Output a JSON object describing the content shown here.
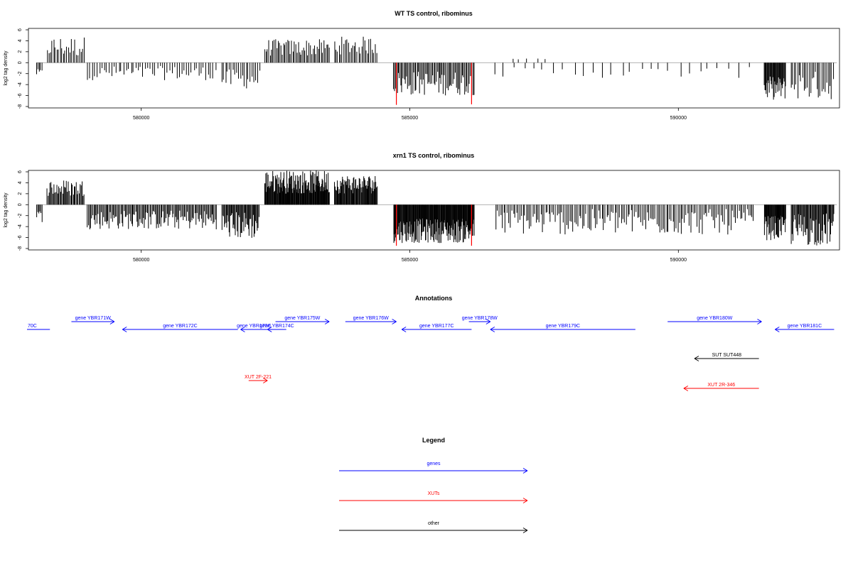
{
  "chart_data": [
    {
      "type": "bar",
      "title": "WT TS control, ribominus",
      "xlabel": "",
      "ylabel": "log2 tag density",
      "xlim": [
        577900,
        593000
      ],
      "ylim": [
        -8,
        6
      ],
      "yticks": [
        "-8",
        "-6",
        "-4",
        "-2",
        "0",
        "2",
        "4",
        "6"
      ],
      "xticks": [
        "580000",
        "585000",
        "590000"
      ],
      "highlight_color": "#ff0000",
      "highlighted_bars": [
        {
          "x": 584750,
          "value": -7.7
        },
        {
          "x": 586150,
          "value": -7.6
        }
      ],
      "segments": [
        {
          "x0": 578050,
          "x1": 578150,
          "step": 25,
          "min": -2.5,
          "max": -1.2
        },
        {
          "x0": 578250,
          "x1": 578950,
          "step": 30,
          "min": 1.0,
          "max": 4.8
        },
        {
          "x0": 579000,
          "x1": 581400,
          "step": 45,
          "min": -3.2,
          "max": -0.6
        },
        {
          "x0": 581500,
          "x1": 582200,
          "step": 35,
          "min": -4.8,
          "max": -1.2
        },
        {
          "x0": 582300,
          "x1": 583500,
          "step": 25,
          "min": 1.2,
          "max": 4.3
        },
        {
          "x0": 583600,
          "x1": 584400,
          "step": 28,
          "min": 1.5,
          "max": 4.8
        },
        {
          "x0": 584700,
          "x1": 586200,
          "step": 22,
          "min": -6.0,
          "max": -1.5
        },
        {
          "x0": 586600,
          "x1": 591400,
          "step": 180,
          "min": -2.8,
          "max": -0.8
        },
        {
          "x0": 586900,
          "x1": 587500,
          "step": 150,
          "min": 0.5,
          "max": 1.2
        },
        {
          "x0": 591600,
          "x1": 592000,
          "step": 12,
          "min": -6.8,
          "max": -2.5
        },
        {
          "x0": 592100,
          "x1": 592900,
          "step": 30,
          "min": -6.8,
          "max": -1.5
        }
      ]
    },
    {
      "type": "bar",
      "title": "xrn1 TS control, ribominus",
      "xlabel": "",
      "ylabel": "log2 tag density",
      "xlim": [
        577900,
        593000
      ],
      "ylim": [
        -8,
        6
      ],
      "yticks": [
        "-8",
        "-6",
        "-4",
        "-2",
        "0",
        "2",
        "4",
        "6"
      ],
      "xticks": [
        "580000",
        "585000",
        "590000"
      ],
      "highlight_color": "#ff0000",
      "highlighted_bars": [
        {
          "x": 584750,
          "value": -7.5
        },
        {
          "x": 586150,
          "value": -7.5
        }
      ],
      "segments": [
        {
          "x0": 578050,
          "x1": 578150,
          "step": 20,
          "min": -3.2,
          "max": -1.0
        },
        {
          "x0": 578250,
          "x1": 578950,
          "step": 18,
          "min": 1.5,
          "max": 4.6
        },
        {
          "x0": 579000,
          "x1": 581400,
          "step": 20,
          "min": -4.5,
          "max": -1.0
        },
        {
          "x0": 581500,
          "x1": 582200,
          "step": 15,
          "min": -6.3,
          "max": -1.2
        },
        {
          "x0": 582300,
          "x1": 583500,
          "step": 10,
          "min": 2.0,
          "max": 6.3
        },
        {
          "x0": 583600,
          "x1": 584400,
          "step": 12,
          "min": 2.0,
          "max": 5.5
        },
        {
          "x0": 584700,
          "x1": 586200,
          "step": 10,
          "min": -7.0,
          "max": -2.5
        },
        {
          "x0": 586600,
          "x1": 591400,
          "step": 30,
          "min": -5.5,
          "max": -0.8
        },
        {
          "x0": 591600,
          "x1": 592000,
          "step": 10,
          "min": -6.5,
          "max": -2.0
        },
        {
          "x0": 592100,
          "x1": 592900,
          "step": 15,
          "min": -7.5,
          "max": -1.5
        }
      ]
    }
  ],
  "annotations": {
    "title": "Annotations",
    "features": [
      {
        "label": "70C",
        "type": "gene",
        "strand": "-",
        "start": 577800,
        "end": 578300,
        "row": 1
      },
      {
        "label": "gene YBR171W",
        "type": "gene",
        "strand": "+",
        "start": 578700,
        "end": 579500,
        "row": 0
      },
      {
        "label": "gene YBR172C",
        "type": "gene",
        "strand": "-",
        "start": 579650,
        "end": 581800,
        "row": 1
      },
      {
        "label": "gene YBR173C",
        "type": "gene",
        "strand": "-",
        "start": 581850,
        "end": 582350,
        "row": 1
      },
      {
        "label": "gene YBR174C",
        "type": "gene",
        "strand": "-",
        "start": 582350,
        "end": 582700,
        "row": 1
      },
      {
        "label": "gene YBR175W",
        "type": "gene",
        "strand": "+",
        "start": 582500,
        "end": 583500,
        "row": 0
      },
      {
        "label": "gene YBR176W",
        "type": "gene",
        "strand": "+",
        "start": 583800,
        "end": 584750,
        "row": 0
      },
      {
        "label": "gene YBR177C",
        "type": "gene",
        "strand": "-",
        "start": 584850,
        "end": 586150,
        "row": 1
      },
      {
        "label": "gene YBR178W",
        "type": "gene",
        "strand": "+",
        "start": 586100,
        "end": 586500,
        "row": 0
      },
      {
        "label": "gene YBR179C",
        "type": "gene",
        "strand": "-",
        "start": 586500,
        "end": 589200,
        "row": 1
      },
      {
        "label": "gene YBR180W",
        "type": "gene",
        "strand": "+",
        "start": 589800,
        "end": 591550,
        "row": 0
      },
      {
        "label": "gene YBR181C",
        "type": "gene",
        "strand": "-",
        "start": 591800,
        "end": 592900,
        "row": 1
      },
      {
        "label": "SUT SUT448",
        "type": "other",
        "strand": "-",
        "start": 590300,
        "end": 591500,
        "row": 2
      },
      {
        "label": "XUT 2F-221",
        "type": "XUT",
        "strand": "+",
        "start": 582000,
        "end": 582350,
        "row": 3
      },
      {
        "label": "XUT 2R-346",
        "type": "XUT",
        "strand": "-",
        "start": 590100,
        "end": 591500,
        "row": 4
      }
    ]
  },
  "legend": {
    "title": "Legend",
    "entries": [
      {
        "label": "genes",
        "color": "#0000ff"
      },
      {
        "label": "XUTs",
        "color": "#ff0000"
      },
      {
        "label": "other",
        "color": "#000000"
      }
    ]
  },
  "colors": {
    "gene": "#0000ff",
    "XUT": "#ff0000",
    "other": "#000000",
    "bar": "#000000",
    "baseline": "#999999"
  }
}
